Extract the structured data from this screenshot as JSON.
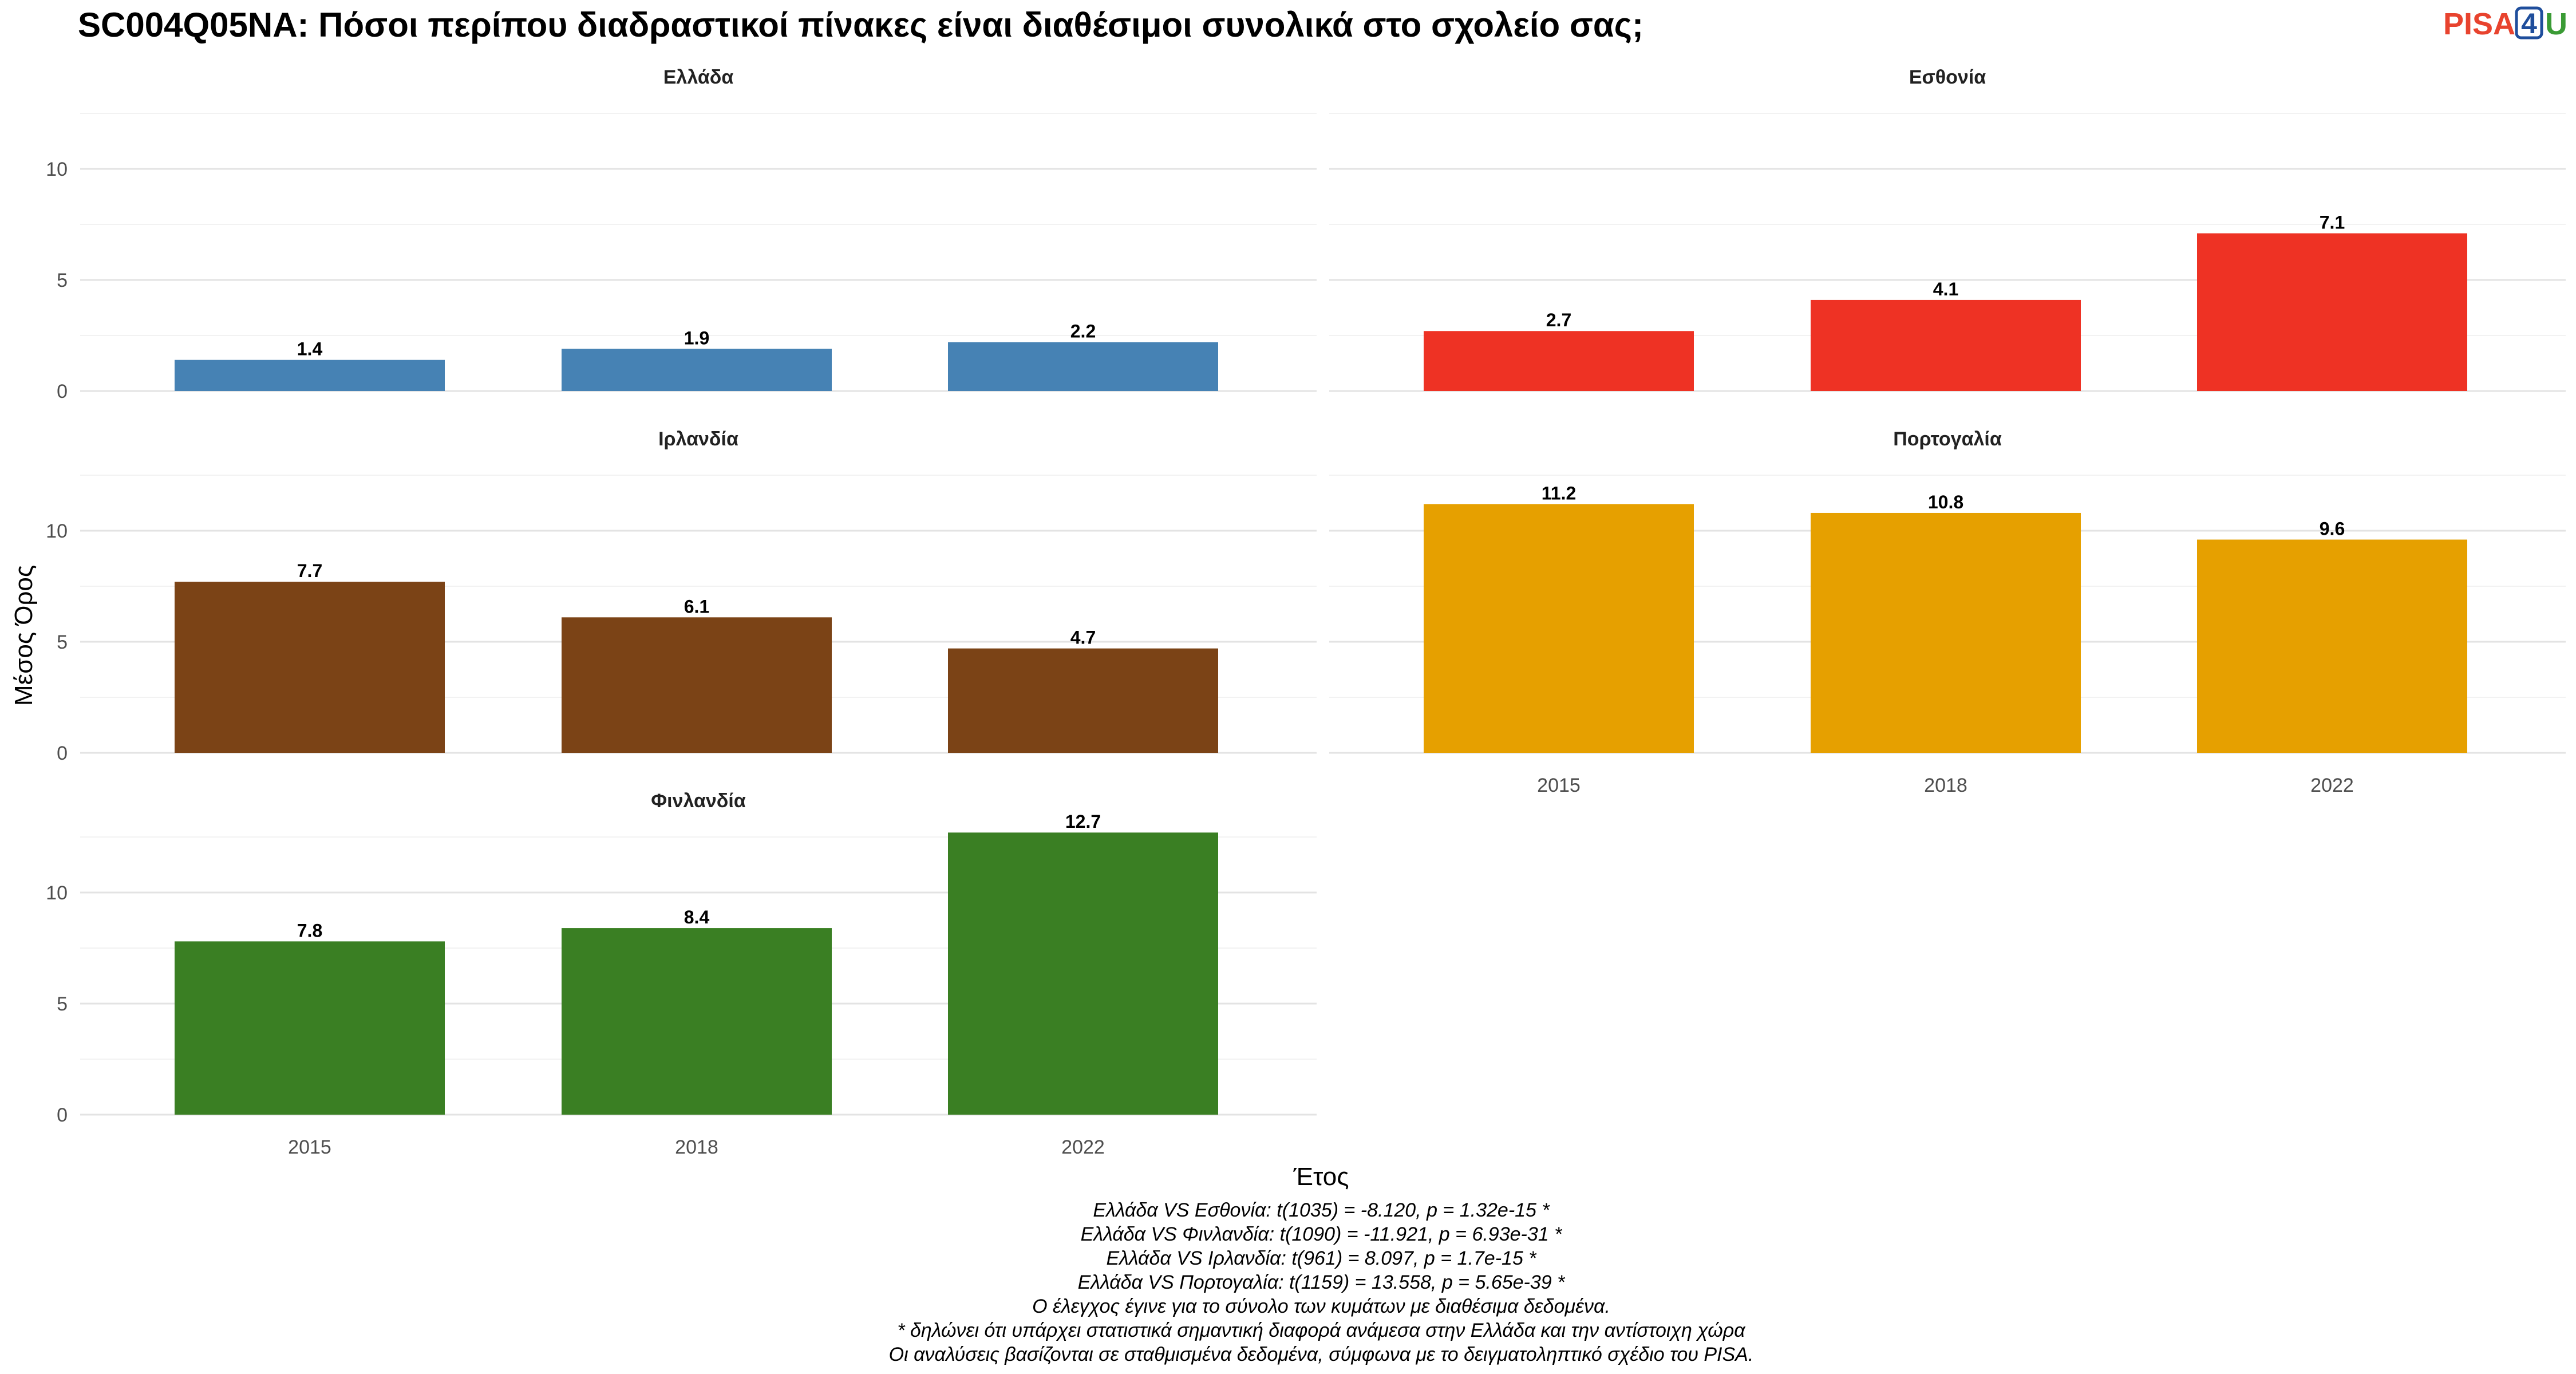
{
  "logo": {
    "part1": "PISA",
    "part2": "4",
    "part3": "U"
  },
  "chart_data": {
    "type": "bar",
    "title": "SC004Q05NA: Πόσοι περίπου διαδραστικοί πίνακες είναι διαθέσιμοι συνολικά στο σχολείο σας;",
    "xlabel": "Έτος",
    "ylabel": "Μέσος Όρος",
    "categories": [
      "2015",
      "2018",
      "2022"
    ],
    "yticks": [
      0,
      5,
      10
    ],
    "ylim": [
      0,
      13
    ],
    "grid": true,
    "panels": [
      {
        "name": "Ελλάδα",
        "color": "#4682b4",
        "values": [
          1.4,
          1.9,
          2.2
        ],
        "labels": [
          "1.4",
          "1.9",
          "2.2"
        ]
      },
      {
        "name": "Εσθονία",
        "color": "#ee3224",
        "values": [
          2.7,
          4.1,
          7.1
        ],
        "labels": [
          "2.7",
          "4.1",
          "7.1"
        ]
      },
      {
        "name": "Ιρλανδία",
        "color": "#7b4316",
        "values": [
          7.7,
          6.1,
          4.7
        ],
        "labels": [
          "7.7",
          "6.1",
          "4.7"
        ]
      },
      {
        "name": "Πορτογαλία",
        "color": "#e6a000",
        "values": [
          11.2,
          10.8,
          9.6
        ],
        "labels": [
          "11.2",
          "10.8",
          "9.6"
        ]
      },
      {
        "name": "Φινλανδία",
        "color": "#3a7f23",
        "values": [
          7.8,
          8.4,
          12.7
        ],
        "labels": [
          "7.8",
          "8.4",
          "12.7"
        ]
      }
    ],
    "notes": [
      "Ελλάδα VS Εσθονία: t(1035) = -8.120, p = 1.32e-15 *",
      "Ελλάδα VS Φινλανδία: t(1090) = -11.921, p = 6.93e-31 *",
      "Ελλάδα VS Ιρλανδία: t(961) = 8.097, p = 1.7e-15 *",
      "Ελλάδα VS Πορτογαλία: t(1159) = 13.558, p = 5.65e-39 *",
      "Ο έλεγχος έγινε για το σύνολο των κυμάτων με διαθέσιμα δεδομένα.",
      "* δηλώνει ότι υπάρχει στατιστικά σημαντική διαφορά ανάμεσα στην Ελλάδα και την αντίστοιχη χώρα",
      "Οι αναλύσεις βασίζονται σε σταθμισμένα δεδομένα, σύμφωνα με το δειγματοληπτικό σχέδιο του PISA."
    ]
  }
}
